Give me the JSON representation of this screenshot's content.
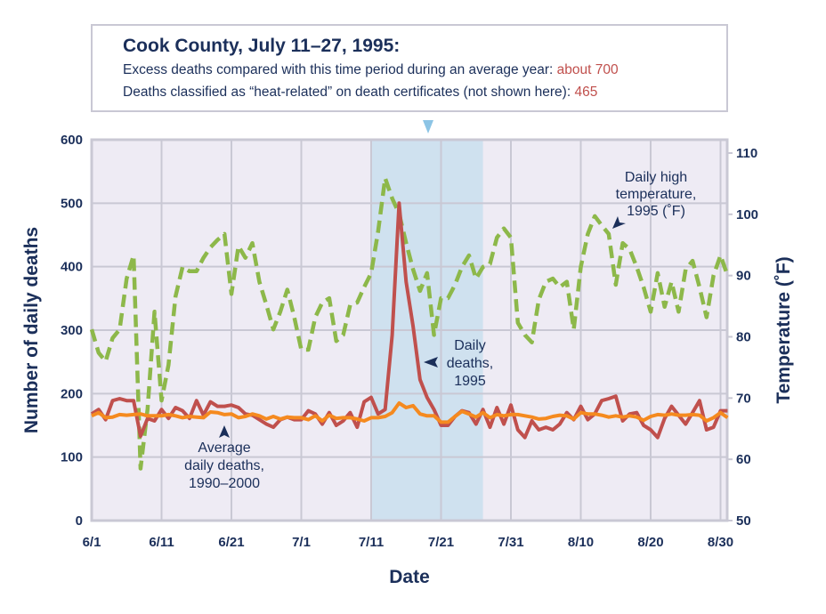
{
  "header": {
    "title": "Cook County, July 11–27, 1995:",
    "line1_text": "Excess deaths compared with this time period during an average year: ",
    "line1_value": "about 700",
    "line2_text": "Deaths classified as “heat-related” on death certificates (not shown here): ",
    "line2_value": "465"
  },
  "chart_data": {
    "type": "line",
    "xlabel": "Date",
    "ylabel": "Number of daily deaths",
    "y2label": "Temperature (˚F)",
    "ylim": [
      0,
      600
    ],
    "y2lim": [
      50,
      110
    ],
    "x_start": "6/1",
    "x_end": "8/31",
    "x_ticks": [
      "6/1",
      "6/11",
      "6/21",
      "7/1",
      "7/11",
      "7/21",
      "7/31",
      "8/10",
      "8/20",
      "8/30"
    ],
    "y_ticks": [
      0,
      100,
      200,
      300,
      400,
      500,
      600
    ],
    "y2_ticks": [
      50,
      60,
      70,
      80,
      90,
      100,
      110
    ],
    "grid": true,
    "highlight_range": [
      "7/11",
      "7/27"
    ],
    "colors": {
      "deaths_1995": "#c0504d",
      "average": "#f58a1f",
      "temperature": "#8db84a",
      "highlight": "#cfe1ef",
      "background": "#eeebf4"
    },
    "series": [
      {
        "name": "Daily deaths, 1995",
        "axis": "left",
        "style": "solid",
        "values": [
          168,
          175,
          159,
          189,
          192,
          189,
          189,
          133,
          161,
          157,
          175,
          161,
          178,
          173,
          161,
          189,
          166,
          187,
          180,
          180,
          182,
          178,
          168,
          166,
          159,
          152,
          147,
          159,
          163,
          159,
          159,
          173,
          168,
          152,
          170,
          150,
          157,
          170,
          147,
          187,
          194,
          168,
          175,
          292,
          500,
          376,
          306,
          222,
          194,
          175,
          150,
          150,
          164,
          173,
          170,
          152,
          175,
          147,
          178,
          152,
          182,
          143,
          131,
          157,
          143,
          147,
          143,
          152,
          170,
          159,
          180,
          159,
          168,
          189,
          192,
          196,
          157,
          168,
          170,
          150,
          143,
          131,
          161,
          180,
          166,
          152,
          170,
          189,
          143,
          147,
          173,
          173
        ]
      },
      {
        "name": "Average daily deaths, 1990–2000",
        "axis": "left",
        "style": "solid",
        "values": [
          165,
          170,
          162,
          163,
          167,
          166,
          167,
          168,
          165,
          165,
          165,
          167,
          165,
          162,
          164,
          163,
          162,
          171,
          170,
          167,
          168,
          162,
          164,
          168,
          165,
          160,
          164,
          160,
          163,
          162,
          162,
          159,
          165,
          157,
          166,
          161,
          162,
          162,
          160,
          157,
          162,
          162,
          164,
          170,
          185,
          178,
          181,
          168,
          165,
          165,
          155,
          155,
          164,
          172,
          168,
          163,
          170,
          162,
          167,
          165,
          167,
          167,
          165,
          163,
          160,
          161,
          164,
          166,
          165,
          160,
          170,
          168,
          168,
          166,
          163,
          165,
          163,
          165,
          163,
          158,
          164,
          167,
          166,
          168,
          166,
          166,
          167,
          166,
          157,
          162,
          170,
          162
        ]
      },
      {
        "name": "Daily high temperature, 1995 (˚F)",
        "axis": "right",
        "style": "dashed",
        "values": [
          81.2,
          77.4,
          76.0,
          79.8,
          81.2,
          89.5,
          93.3,
          58.5,
          68.2,
          84.1,
          69.6,
          75.4,
          86.6,
          91.4,
          90.7,
          90.7,
          92.9,
          94.6,
          95.8,
          96.8,
          87.0,
          94.8,
          92.9,
          95.3,
          89.0,
          85.2,
          81.2,
          84.1,
          87.7,
          83.2,
          77.9,
          77.9,
          83.2,
          85.6,
          86.3,
          79.3,
          80.3,
          85.2,
          85.6,
          88.1,
          90.4,
          97.2,
          105.9,
          102.6,
          100.1,
          95.3,
          91.0,
          87.5,
          90.4,
          80.3,
          86.3,
          86.3,
          88.5,
          91.4,
          93.3,
          89.5,
          91.4,
          91.9,
          96.2,
          97.7,
          96.2,
          82.3,
          80.3,
          79.1,
          86.1,
          89.0,
          89.5,
          88.1,
          89.0,
          81.2,
          91.4,
          96.8,
          99.7,
          98.2,
          96.8,
          88.5,
          95.3,
          94.3,
          91.4,
          88.1,
          84.1,
          90.4,
          84.9,
          89.0,
          84.1,
          91.0,
          92.4,
          88.1,
          83.2,
          90.0,
          93.3,
          90.0
        ]
      }
    ],
    "annotations": {
      "average": [
        "Average",
        "daily deaths,",
        "1990–2000"
      ],
      "deaths": [
        "Daily",
        "deaths,",
        "1995"
      ],
      "temperature": [
        "Daily high",
        "temperature,",
        "1995 (˚F)"
      ]
    }
  }
}
